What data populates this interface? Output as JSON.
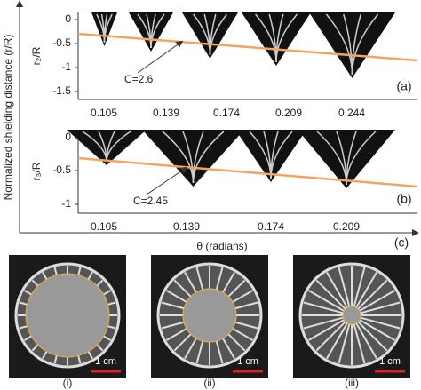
{
  "y_axis_label": "Normalized shielding distance (r/R)",
  "x_axis_label": "θ (radians)",
  "panel_c_label": "(c)",
  "panels": [
    {
      "label": "(a)",
      "ylabel": "r₂/R",
      "yticks": [
        "0",
        "-0.5",
        "-1",
        "-1.5"
      ],
      "xticks": [
        "0.105",
        "0.139",
        "0.174",
        "0.209",
        "0.244"
      ],
      "annotation": "C=2.6"
    },
    {
      "label": "(b)",
      "ylabel": "r₃/R",
      "yticks": [
        "0",
        "-0.5",
        "-1"
      ],
      "xticks": [
        "0.105",
        "0.139",
        "0.174",
        "0.209"
      ],
      "annotation": "C=2.45"
    }
  ],
  "photos": [
    {
      "label": "(i)",
      "scale": "1 cm"
    },
    {
      "label": "(ii)",
      "scale": "1 cm"
    },
    {
      "label": "(iii)",
      "scale": "1 cm"
    }
  ]
}
